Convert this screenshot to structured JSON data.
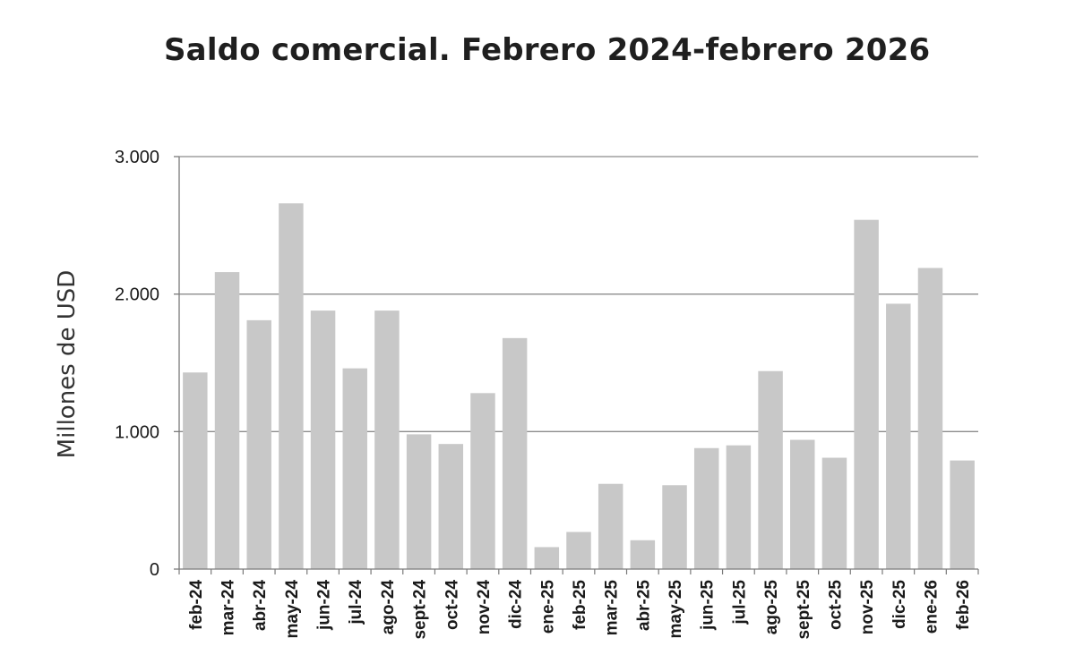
{
  "chart_data": {
    "type": "bar",
    "title": "Saldo comercial. Febrero 2024-febrero 2026",
    "ylabel": "Millones de USD",
    "xlabel": "",
    "ylim": [
      0,
      3000
    ],
    "yticks": [
      0,
      1000,
      2000,
      3000
    ],
    "ytick_labels": [
      "0",
      "1.000",
      "2.000",
      "3.000"
    ],
    "grid": true,
    "legend": "none",
    "bar_color": "#c8c8c8",
    "categories": [
      "feb-24",
      "mar-24",
      "abr-24",
      "may-24",
      "jun-24",
      "jul-24",
      "ago-24",
      "sept-24",
      "oct-24",
      "nov-24",
      "dic-24",
      "ene-25",
      "feb-25",
      "mar-25",
      "abr-25",
      "may-25",
      "jun-25",
      "jul-25",
      "ago-25",
      "sept-25",
      "oct-25",
      "nov-25",
      "dic-25",
      "ene-26",
      "feb-26"
    ],
    "values": [
      1430,
      2160,
      1810,
      2660,
      1880,
      1460,
      1880,
      980,
      910,
      1280,
      1680,
      160,
      270,
      620,
      210,
      610,
      880,
      900,
      1440,
      940,
      810,
      2540,
      1930,
      2190,
      790
    ]
  }
}
